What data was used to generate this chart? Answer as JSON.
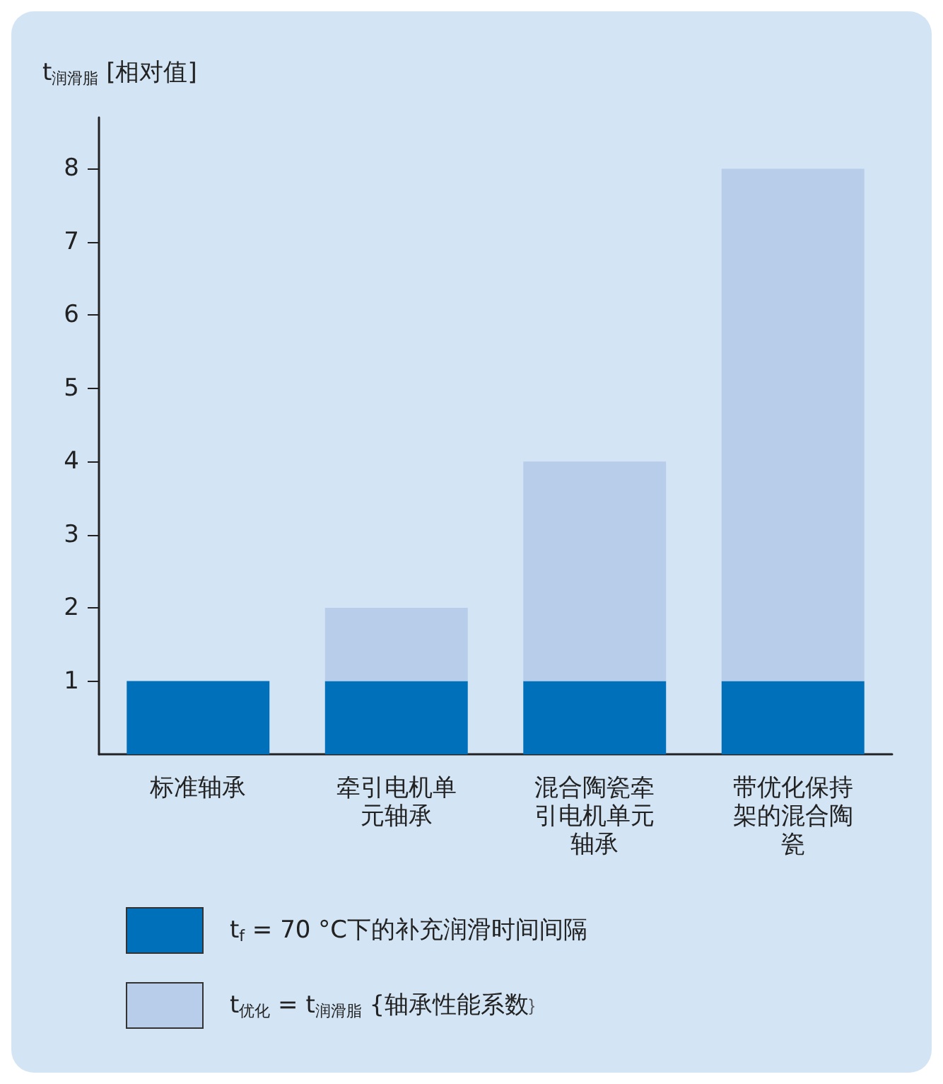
{
  "chart_data": {
    "type": "bar",
    "stacked": true,
    "ylabel": "t$_{润滑脂}$ [相对值]",
    "categories": [
      "标准轴承",
      "牵引电机单元轴承",
      "混合陶瓷牵引电机单元轴承",
      "带优化保持架的混合陶瓷"
    ],
    "series": [
      {
        "name": "t$_{f}$ = 70 °C下的补充润滑时间间隔",
        "color": "#0070bb",
        "values": [
          1,
          1,
          1,
          1
        ]
      },
      {
        "name": "t$_{优化}$ = t$_{润滑脂}$ {轴承性能系数}",
        "color": "#b8cde9",
        "values": [
          0,
          1,
          3,
          7
        ]
      }
    ],
    "ylim": [
      0,
      8.7
    ],
    "yticks": [
      1,
      2,
      3,
      4,
      5,
      6,
      7,
      8
    ],
    "grid": false,
    "legend": "bottom"
  }
}
